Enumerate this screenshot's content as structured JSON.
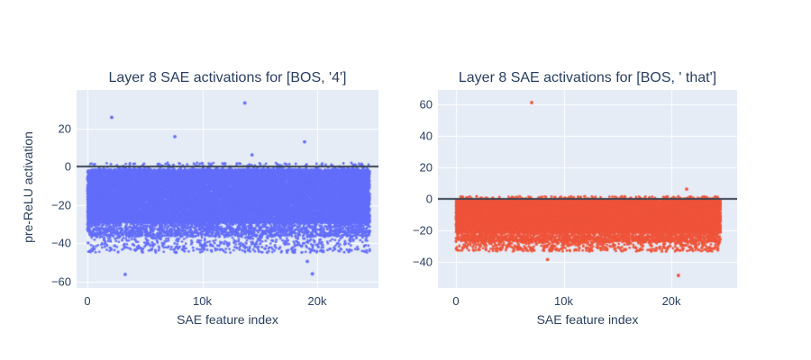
{
  "figure": {
    "background": "#ffffff",
    "plot_background": "#E5ECF6",
    "grid_color": "#ffffff",
    "text_color": "#2a3f5f",
    "zero_line_color": "#3b4552"
  },
  "chart_data": [
    {
      "type": "scatter",
      "title": "Layer 8 SAE activations for [BOS, '4']",
      "xlabel": "SAE feature index",
      "ylabel": "pre-ReLU activation",
      "marker_color": "#636EFA",
      "n_points": 24576,
      "xlim": [
        -940,
        25330
      ],
      "ylim": [
        -63.5,
        40
      ],
      "xticks": [
        {
          "value": 0,
          "label": "0"
        },
        {
          "value": 10000,
          "label": "10k"
        },
        {
          "value": 20000,
          "label": "20k"
        }
      ],
      "yticks": [
        {
          "value": 20,
          "label": "20"
        },
        {
          "value": 0,
          "label": "0"
        },
        {
          "value": -20,
          "label": "−20"
        },
        {
          "value": -40,
          "label": "−40"
        },
        {
          "value": -60,
          "label": "−60"
        }
      ],
      "zero_line_y": 0,
      "band_layers": [
        {
          "frac": 0.887,
          "y0": -1.5,
          "y1": -29.5
        },
        {
          "frac": 0.07,
          "y0": -27.0,
          "y1": -36.5
        },
        {
          "frac": 0.035,
          "y0": -32.0,
          "y1": -45.0
        },
        {
          "frac": 0.008,
          "y0": 2.0,
          "y1": -1.5
        }
      ],
      "outliers": [
        [
          2120,
          25.7
        ],
        [
          7610,
          15.6
        ],
        [
          13700,
          33.2
        ],
        [
          14330,
          6.1
        ],
        [
          18900,
          12.9
        ],
        [
          3290,
          -56.4
        ],
        [
          7710,
          -44.9
        ],
        [
          19140,
          -49.6
        ],
        [
          19580,
          -56.1
        ]
      ],
      "seed": 1234567
    },
    {
      "type": "scatter",
      "title": "Layer 8 SAE activations for [BOS, ' that']",
      "xlabel": "SAE feature index",
      "ylabel": "",
      "marker_color": "#EF553B",
      "n_points": 24576,
      "xlim": [
        -1670,
        26100
      ],
      "ylim": [
        -56.7,
        69
      ],
      "xticks": [
        {
          "value": 0,
          "label": "0"
        },
        {
          "value": 10000,
          "label": "10k"
        },
        {
          "value": 20000,
          "label": "20k"
        }
      ],
      "yticks": [
        {
          "value": 60,
          "label": "60"
        },
        {
          "value": 40,
          "label": "40"
        },
        {
          "value": 20,
          "label": "20"
        },
        {
          "value": 0,
          "label": "0"
        },
        {
          "value": -20,
          "label": "−20"
        },
        {
          "value": -40,
          "label": "−40"
        }
      ],
      "zero_line_y": 0,
      "band_layers": [
        {
          "frac": 0.889,
          "y0": -1.0,
          "y1": -21.5
        },
        {
          "frac": 0.068,
          "y0": -19.5,
          "y1": -27.5
        },
        {
          "frac": 0.033,
          "y0": -24.5,
          "y1": -33.5
        },
        {
          "frac": 0.01,
          "y0": 1.5,
          "y1": -1.0
        }
      ],
      "outliers": [
        [
          7030,
          61.0
        ],
        [
          21420,
          6.1
        ],
        [
          8510,
          -38.6
        ],
        [
          20650,
          -48.7
        ]
      ],
      "seed": 7654321
    }
  ]
}
